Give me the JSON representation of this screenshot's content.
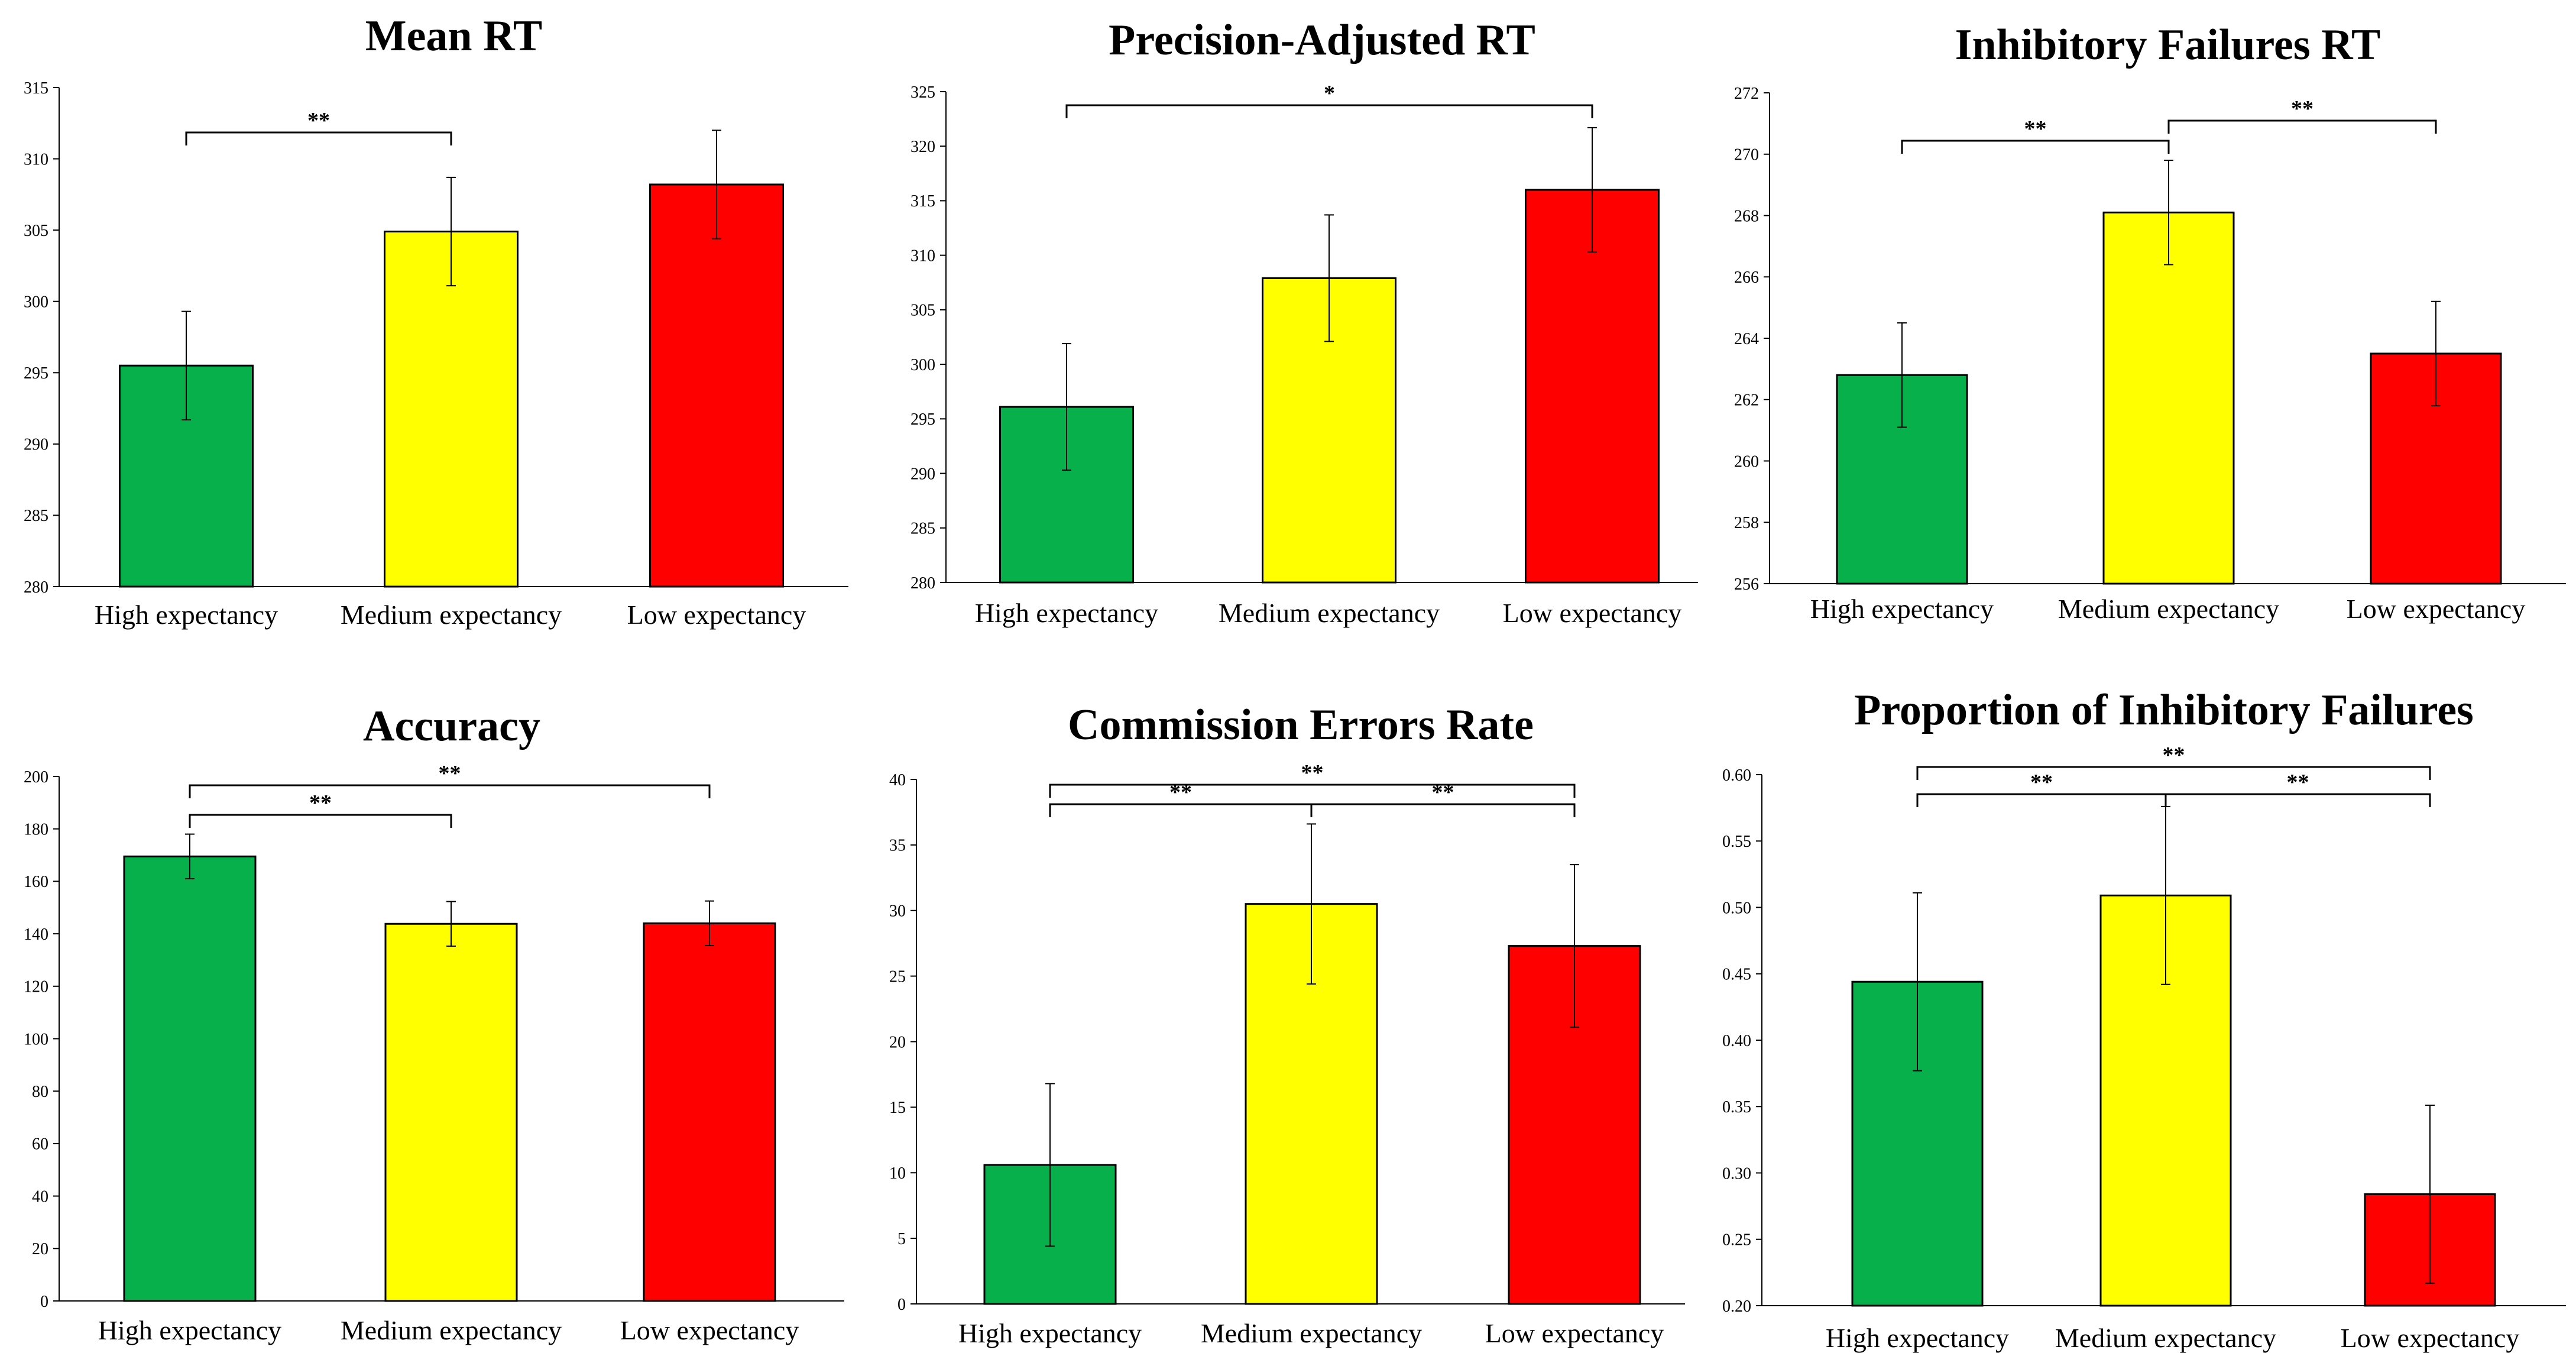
{
  "colors": {
    "high": "#08B04B",
    "medium": "#FFFF00",
    "low": "#FF0000",
    "outline": "#000000"
  },
  "chart_data": [
    {
      "type": "bar",
      "title": "Mean RT",
      "categories": [
        "High expectancy",
        "Medium expectancy",
        "Low expectancy"
      ],
      "values": [
        295.5,
        304.9,
        308.2
      ],
      "errors": [
        3.8,
        3.8,
        3.8
      ],
      "ylim": [
        280,
        315
      ],
      "ticks": [
        280,
        285,
        290,
        295,
        300,
        305,
        310,
        315
      ],
      "tick_labels": [
        "280",
        "285",
        "290",
        "295",
        "300",
        "305",
        "310",
        "315"
      ],
      "comparisons": [
        {
          "from": 0,
          "to": 1,
          "label": "**",
          "level": 1
        }
      ]
    },
    {
      "type": "bar",
      "title": "Precision-Adjusted RT",
      "categories": [
        "High expectancy",
        "Medium expectancy",
        "Low expectancy"
      ],
      "values": [
        296.1,
        307.9,
        316.0
      ],
      "errors": [
        5.8,
        5.8,
        5.7
      ],
      "ylim": [
        280,
        325
      ],
      "ticks": [
        280,
        285,
        290,
        295,
        300,
        305,
        310,
        315,
        320,
        325
      ],
      "tick_labels": [
        "280",
        "285",
        "290",
        "295",
        "300",
        "305",
        "310",
        "315",
        "320",
        "325"
      ],
      "comparisons": [
        {
          "from": 0,
          "to": 2,
          "label": "*",
          "level": 1
        }
      ]
    },
    {
      "type": "bar",
      "title": "Inhibitory Failures RT",
      "categories": [
        "High expectancy",
        "Medium expectancy",
        "Low expectancy"
      ],
      "values": [
        262.8,
        268.1,
        263.5
      ],
      "errors": [
        1.7,
        1.7,
        1.7
      ],
      "ylim": [
        256,
        272
      ],
      "ticks": [
        256,
        258,
        260,
        262,
        264,
        266,
        268,
        270,
        272
      ],
      "tick_labels": [
        "256",
        "258",
        "260",
        "262",
        "264",
        "266",
        "268",
        "270",
        "272"
      ],
      "comparisons": [
        {
          "from": 0,
          "to": 1,
          "label": "**",
          "level": 1
        },
        {
          "from": 1,
          "to": 2,
          "label": "**",
          "level": 2
        }
      ]
    },
    {
      "type": "bar",
      "title": "Accuracy",
      "categories": [
        "High expectancy",
        "Medium expectancy",
        "Low expectancy"
      ],
      "values": [
        169.5,
        143.8,
        144.0
      ],
      "errors": [
        8.5,
        8.5,
        8.5
      ],
      "ylim": [
        0,
        200
      ],
      "ticks": [
        0,
        20,
        40,
        60,
        80,
        100,
        120,
        140,
        160,
        180,
        200
      ],
      "tick_labels": [
        "0",
        "20",
        "40",
        "60",
        "80",
        "100",
        "120",
        "140",
        "160",
        "180",
        "200"
      ],
      "comparisons": [
        {
          "from": 0,
          "to": 1,
          "label": "**",
          "level": 1
        },
        {
          "from": 0,
          "to": 2,
          "label": "**",
          "level": 2
        }
      ]
    },
    {
      "type": "bar",
      "title": "Commission Errors Rate",
      "categories": [
        "High expectancy",
        "Medium expectancy",
        "Low expectancy"
      ],
      "values": [
        10.6,
        30.5,
        27.3
      ],
      "errors": [
        6.2,
        6.1,
        6.2
      ],
      "ylim": [
        0,
        40
      ],
      "ticks": [
        0,
        5,
        10,
        15,
        20,
        25,
        30,
        35,
        40
      ],
      "tick_labels": [
        "0",
        "5",
        "10",
        "15",
        "20",
        "25",
        "30",
        "35",
        "40"
      ],
      "comparisons": [
        {
          "from": 0,
          "to": 1,
          "label": "**",
          "level": 1
        },
        {
          "from": 1,
          "to": 2,
          "label": "**",
          "level": 1
        },
        {
          "from": 0,
          "to": 2,
          "label": "**",
          "level": 2
        }
      ]
    },
    {
      "type": "bar",
      "title": "Proportion of Inhibitory Failures",
      "categories": [
        "High expectancy",
        "Medium expectancy",
        "Low expectancy"
      ],
      "values": [
        0.444,
        0.509,
        0.284
      ],
      "errors": [
        0.067,
        0.067,
        0.067
      ],
      "ylim": [
        0.2,
        0.6
      ],
      "ticks": [
        0.2,
        0.25,
        0.3,
        0.35,
        0.4,
        0.45,
        0.5,
        0.55,
        0.6
      ],
      "tick_labels": [
        "0.20",
        "0.25",
        "0.30",
        "0.35",
        "0.40",
        "0.45",
        "0.50",
        "0.55",
        "0.60"
      ],
      "comparisons": [
        {
          "from": 0,
          "to": 1,
          "label": "**",
          "level": 1
        },
        {
          "from": 1,
          "to": 2,
          "label": "**",
          "level": 1
        },
        {
          "from": 0,
          "to": 2,
          "label": "**",
          "level": 2
        }
      ]
    }
  ]
}
